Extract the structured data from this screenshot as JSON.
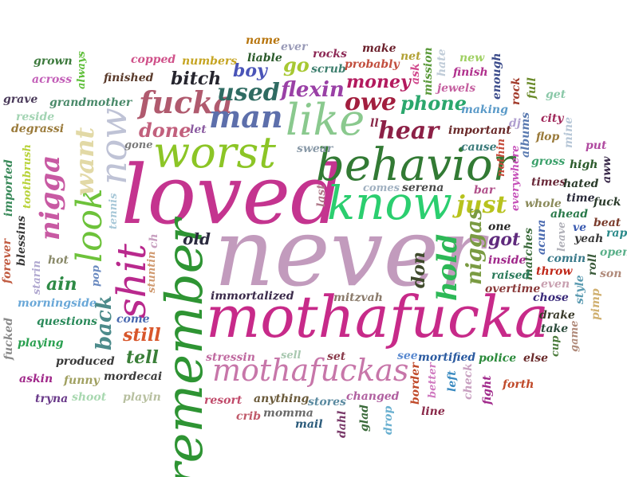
{
  "words": [
    {
      "text": "never",
      "color": "#c29bbd"
    },
    {
      "text": "loved",
      "color": "#c4348f"
    },
    {
      "text": "mothafucka",
      "color": "#c72a89"
    },
    {
      "text": "remember",
      "color": "#2e9433"
    },
    {
      "text": "behavior",
      "color": "#327a34"
    },
    {
      "text": "know",
      "color": "#2bce6f"
    },
    {
      "text": "worst",
      "color": "#8cc526"
    },
    {
      "text": "like",
      "color": "#8ac98e"
    },
    {
      "text": "mothafuckas",
      "color": "#c776a9"
    },
    {
      "text": "now",
      "color": "#bfc3d6"
    },
    {
      "text": "shit",
      "color": "#b9298d"
    },
    {
      "text": "look",
      "color": "#6dc23a"
    },
    {
      "text": "nigga",
      "color": "#c85aa3"
    },
    {
      "text": "want",
      "color": "#e2d9a6"
    },
    {
      "text": "fucka",
      "color": "#b05a6e"
    },
    {
      "text": "man",
      "color": "#5d6fab"
    },
    {
      "text": "used",
      "color": "#2f6b62"
    },
    {
      "text": "hear",
      "color": "#8c2046"
    },
    {
      "text": "owe",
      "color": "#a21e3e"
    },
    {
      "text": "phone",
      "color": "#2aa76c"
    },
    {
      "text": "hold",
      "color": "#2db857"
    },
    {
      "text": "just",
      "color": "#b7c21d"
    },
    {
      "text": "flexin",
      "color": "#9a40a6"
    },
    {
      "text": "money",
      "color": "#b31a5e"
    },
    {
      "text": "done",
      "color": "#c2607d"
    },
    {
      "text": "back",
      "color": "#4c8b8b"
    },
    {
      "text": "tell",
      "color": "#3a7f38"
    },
    {
      "text": "still",
      "color": "#d8562b"
    },
    {
      "text": "ain",
      "color": "#2d8a45"
    },
    {
      "text": "bitch",
      "color": "#26252e"
    },
    {
      "text": "boy",
      "color": "#4a54b8"
    },
    {
      "text": "go",
      "color": "#a7c832"
    },
    {
      "text": "niggas",
      "color": "#7a9b42"
    },
    {
      "text": "got",
      "color": "#5f2a7d"
    },
    {
      "text": "don",
      "color": "#3f4a2c"
    },
    {
      "text": "old",
      "color": "#2a2a3e"
    },
    {
      "text": "name",
      "color": "#b8760f"
    },
    {
      "text": "ever",
      "color": "#9a9bb8"
    },
    {
      "text": "rocks",
      "color": "#8d2955"
    },
    {
      "text": "make",
      "color": "#6a1e2a"
    },
    {
      "text": "net",
      "color": "#b2a135"
    },
    {
      "text": "new",
      "color": "#9fd062"
    },
    {
      "text": "copped",
      "color": "#d0528a"
    },
    {
      "text": "numbers",
      "color": "#c6a523"
    },
    {
      "text": "liable",
      "color": "#2a5a2a"
    },
    {
      "text": "scrub",
      "color": "#3e7f6e"
    },
    {
      "text": "probably",
      "color": "#c24f3e"
    },
    {
      "text": "ask",
      "color": "#d14a8e"
    },
    {
      "text": "mission",
      "color": "#5a9a3a"
    },
    {
      "text": "hate",
      "color": "#c0ccd8"
    },
    {
      "text": "finish",
      "color": "#b1328e"
    },
    {
      "text": "grown",
      "color": "#3d7a3d"
    },
    {
      "text": "across",
      "color": "#c35fb8"
    },
    {
      "text": "always",
      "color": "#5fbf3a"
    },
    {
      "text": "finished",
      "color": "#5a3a2a"
    },
    {
      "text": "grave",
      "color": "#4a3a5a"
    },
    {
      "text": "grandmother",
      "color": "#4a8a6a"
    },
    {
      "text": "reside",
      "color": "#a3d4b3"
    },
    {
      "text": "degrassi",
      "color": "#9a7a3a"
    },
    {
      "text": "let",
      "color": "#8a5aa0"
    },
    {
      "text": "jewels",
      "color": "#c560a0"
    },
    {
      "text": "making",
      "color": "#5a9ac8"
    },
    {
      "text": "enough",
      "color": "#3a4a8a"
    },
    {
      "text": "rock",
      "color": "#a23a2a"
    },
    {
      "text": "full",
      "color": "#6a8a2a"
    },
    {
      "text": "get",
      "color": "#8ac8a8"
    },
    {
      "text": "dj",
      "color": "#b1a0d0"
    },
    {
      "text": "ll",
      "color": "#8a2a4a"
    },
    {
      "text": "important",
      "color": "#6a2a2a"
    },
    {
      "text": "albums",
      "color": "#5a7ab0"
    },
    {
      "text": "city",
      "color": "#a0285a"
    },
    {
      "text": "mine",
      "color": "#b8c8d8"
    },
    {
      "text": "flop",
      "color": "#9a7a3a"
    },
    {
      "text": "gone",
      "color": "#7a7a7a"
    },
    {
      "text": "swear",
      "color": "#8a9aa8"
    },
    {
      "text": "cause",
      "color": "#3a7a7a"
    },
    {
      "text": "nothin",
      "color": "#c54a3a"
    },
    {
      "text": "put",
      "color": "#b04aa0"
    },
    {
      "text": "gross",
      "color": "#3aa06a"
    },
    {
      "text": "high",
      "color": "#2a5a2a"
    },
    {
      "text": "aww",
      "color": "#3a2a4a"
    },
    {
      "text": "toothbrush",
      "color": "#b7d238"
    },
    {
      "text": "imported",
      "color": "#3a8a5a"
    },
    {
      "text": "everywhere",
      "color": "#c54fb8"
    },
    {
      "text": "times",
      "color": "#6a2a3a"
    },
    {
      "text": "hated",
      "color": "#2a3a2a"
    },
    {
      "text": "serena",
      "color": "#4a4a4a"
    },
    {
      "text": "comes",
      "color": "#a0b0c0"
    },
    {
      "text": "last",
      "color": "#b07a8a"
    },
    {
      "text": "bar",
      "color": "#b0508a"
    },
    {
      "text": "time",
      "color": "#2a2a3a"
    },
    {
      "text": "fuck",
      "color": "#2a3a2a"
    },
    {
      "text": "whole",
      "color": "#8a8a5a"
    },
    {
      "text": "ahead",
      "color": "#2a7a4a"
    },
    {
      "text": "beat",
      "color": "#7a3a2a"
    },
    {
      "text": "tennis",
      "color": "#a8c8d8"
    },
    {
      "text": "blessins",
      "color": "#3a3a3a"
    },
    {
      "text": "one",
      "color": "#2a2a2a"
    },
    {
      "text": "acura",
      "color": "#4a6ab0"
    },
    {
      "text": "leave",
      "color": "#b0b0b8"
    },
    {
      "text": "ve",
      "color": "#3a5ab0"
    },
    {
      "text": "rap",
      "color": "#2a8a8a"
    },
    {
      "text": "yeah",
      "color": "#3a3a3a"
    },
    {
      "text": "ch",
      "color": "#c8a0c0"
    },
    {
      "text": "forever",
      "color": "#c05a40"
    },
    {
      "text": "hot",
      "color": "#8a8a6a"
    },
    {
      "text": "matches",
      "color": "#3a6a3a"
    },
    {
      "text": "inside",
      "color": "#a0288a"
    },
    {
      "text": "comin",
      "color": "#3a7a8a"
    },
    {
      "text": "open",
      "color": "#5ab08a"
    },
    {
      "text": "roll",
      "color": "#3a5a3a"
    },
    {
      "text": "son",
      "color": "#b08a7a"
    },
    {
      "text": "starin",
      "color": "#b0a8d0"
    },
    {
      "text": "pop",
      "color": "#6a8ac0"
    },
    {
      "text": "stuntin",
      "color": "#d09a70"
    },
    {
      "text": "raised",
      "color": "#2a7a5a"
    },
    {
      "text": "even",
      "color": "#c8a0b0"
    },
    {
      "text": "morningside",
      "color": "#6aa8d8"
    },
    {
      "text": "overtime",
      "color": "#8a3a3a"
    },
    {
      "text": "chose",
      "color": "#3a2a7a"
    },
    {
      "text": "style",
      "color": "#5a9ab0"
    },
    {
      "text": "immortalized",
      "color": "#3a2a4a"
    },
    {
      "text": "mitzvah",
      "color": "#8a7a6a"
    },
    {
      "text": "questions",
      "color": "#2a8a5a"
    },
    {
      "text": "come",
      "color": "#4a6ab0"
    },
    {
      "text": "throw",
      "color": "#c0281a"
    },
    {
      "text": "pimp",
      "color": "#d0b070"
    },
    {
      "text": "drake",
      "color": "#3a3a2a"
    },
    {
      "text": "fucked",
      "color": "#8a8a8a"
    },
    {
      "text": "playing",
      "color": "#2aa050"
    },
    {
      "text": "take",
      "color": "#2a4a3a"
    },
    {
      "text": "cup",
      "color": "#4a7a3a"
    },
    {
      "text": "game",
      "color": "#b08a7a"
    },
    {
      "text": "produced",
      "color": "#3a3a3a"
    },
    {
      "text": "stressin",
      "color": "#c06aa0"
    },
    {
      "text": "sell",
      "color": "#a8c8b0"
    },
    {
      "text": "set",
      "color": "#8a3a4a"
    },
    {
      "text": "see",
      "color": "#5a8ad0"
    },
    {
      "text": "mortified",
      "color": "#2a5aa0"
    },
    {
      "text": "police",
      "color": "#2a8a3a"
    },
    {
      "text": "else",
      "color": "#6a2a2a"
    },
    {
      "text": "askin",
      "color": "#a0288a"
    },
    {
      "text": "funny",
      "color": "#a0a060"
    },
    {
      "text": "mordecai",
      "color": "#3a3a3a"
    },
    {
      "text": "border",
      "color": "#c04a2a"
    },
    {
      "text": "better",
      "color": "#d07ac0"
    },
    {
      "text": "left",
      "color": "#3a8ac0"
    },
    {
      "text": "check",
      "color": "#c8a0c0"
    },
    {
      "text": "fight",
      "color": "#a0288a"
    },
    {
      "text": "forth",
      "color": "#c04a2a"
    },
    {
      "text": "tryna",
      "color": "#6a3a8a"
    },
    {
      "text": "shoot",
      "color": "#a8d8b0"
    },
    {
      "text": "playin",
      "color": "#b8c0a0"
    },
    {
      "text": "resort",
      "color": "#c04a6a"
    },
    {
      "text": "anything",
      "color": "#6a5a3a"
    },
    {
      "text": "stores",
      "color": "#5a8aa0"
    },
    {
      "text": "changed",
      "color": "#b060a0"
    },
    {
      "text": "crib",
      "color": "#c05a6a"
    },
    {
      "text": "momma",
      "color": "#6a6a6a"
    },
    {
      "text": "mail",
      "color": "#2a5a7a"
    },
    {
      "text": "dahl",
      "color": "#7a3a6a"
    },
    {
      "text": "glad",
      "color": "#3a6a3a"
    },
    {
      "text": "drop",
      "color": "#6ab0d0"
    },
    {
      "text": "line",
      "color": "#8a2a4a"
    }
  ]
}
